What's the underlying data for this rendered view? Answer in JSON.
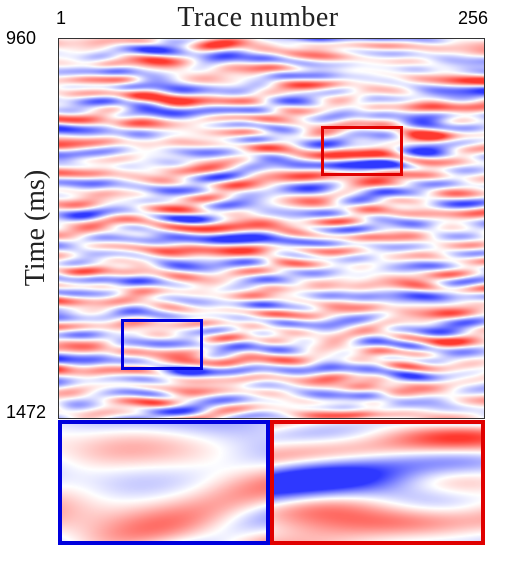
{
  "figure": {
    "title": "Trace number",
    "x_tick_start": "1",
    "x_tick_end": "256",
    "ylabel": "Time (ms)",
    "y_tick_start": "960",
    "y_tick_end": "1472"
  },
  "colors": {
    "positive": "#e03030",
    "negative": "#3030e0",
    "box_red": "#e00000",
    "box_blue": "#0000dd"
  },
  "colormap": "blue-white-red (seismic)",
  "insets": [
    {
      "name": "blue-box-zoom",
      "color": "blue"
    },
    {
      "name": "red-box-zoom",
      "color": "red"
    }
  ]
}
